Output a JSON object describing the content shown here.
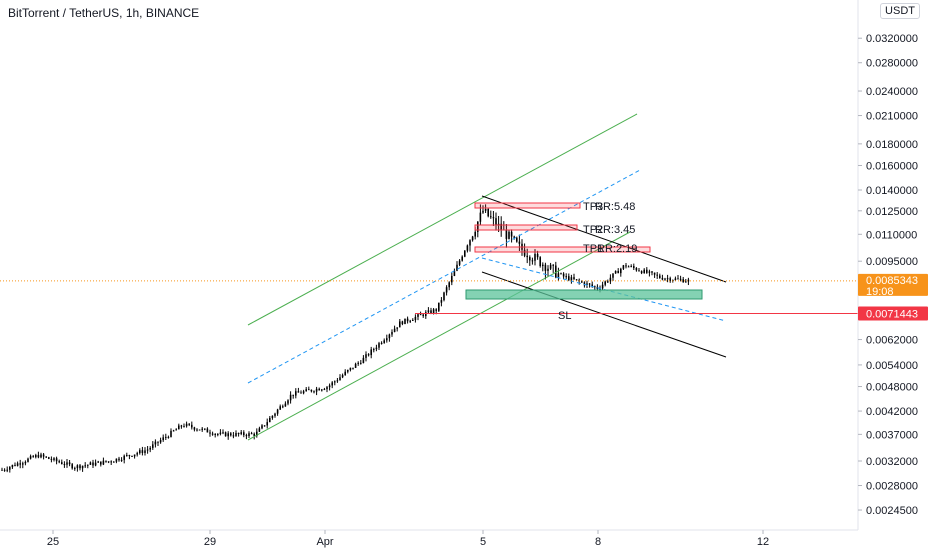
{
  "header": {
    "title": "BitTorrent / TetherUS, 1h, BINANCE",
    "currency": "USDT"
  },
  "colors": {
    "candle": "#000000",
    "trend_green": "#4caf50",
    "trend_blue": "#2196f3",
    "trend_black": "#000000",
    "tp_red": "#f23645",
    "entry_green": "#5bc39a",
    "current_orange": "#f7931a",
    "sl_red": "#f23645",
    "axis_text": "#131722"
  },
  "chart_data": {
    "type": "candlestick",
    "title": "BitTorrent / TetherUS, 1h, BINANCE",
    "x_tick_labels": [
      "25",
      "29",
      "Apr",
      "5",
      "8",
      "12"
    ],
    "y_tick_labels": [
      "0.0320000",
      "0.0280000",
      "0.0240000",
      "0.0210000",
      "0.0180000",
      "0.0160000",
      "0.0140000",
      "0.0125000",
      "0.0110000",
      "0.0095000",
      "0.0062000",
      "0.0054000",
      "0.0048000",
      "0.0042000",
      "0.0037000",
      "0.0032000",
      "0.0028000",
      "0.0024500"
    ],
    "y_scale": "log",
    "current_price": "0.0085343",
    "current_time_remaining": "19:08",
    "stop_price": "0.0071443",
    "annotations": [
      "TP3",
      "RR:5.48",
      "TP2",
      "RR:3.45",
      "TP1",
      "RR:2.19",
      "SL"
    ],
    "approx_close_path": [
      {
        "x": "Mar 23",
        "y": 0.00305
      },
      {
        "x": "Mar 24",
        "y": 0.0033
      },
      {
        "x": "Mar 25",
        "y": 0.0031
      },
      {
        "x": "Mar 26",
        "y": 0.0032
      },
      {
        "x": "Mar 27",
        "y": 0.0034
      },
      {
        "x": "Mar 28",
        "y": 0.0039
      },
      {
        "x": "Mar 29",
        "y": 0.0037
      },
      {
        "x": "Mar 30",
        "y": 0.0037
      },
      {
        "x": "Mar 31",
        "y": 0.0046
      },
      {
        "x": "Apr 1",
        "y": 0.0048
      },
      {
        "x": "Apr 2",
        "y": 0.0056
      },
      {
        "x": "Apr 3",
        "y": 0.0068
      },
      {
        "x": "Apr 4",
        "y": 0.0073
      },
      {
        "x": "Apr 5",
        "y": 0.0125
      },
      {
        "x": "Apr 6",
        "y": 0.0102
      },
      {
        "x": "Apr 7",
        "y": 0.0088
      },
      {
        "x": "Apr 8",
        "y": 0.0082
      },
      {
        "x": "Apr 9",
        "y": 0.0093
      },
      {
        "x": "Apr 10",
        "y": 0.0087
      },
      {
        "x": "Apr 10 late",
        "y": 0.0085343
      }
    ]
  }
}
